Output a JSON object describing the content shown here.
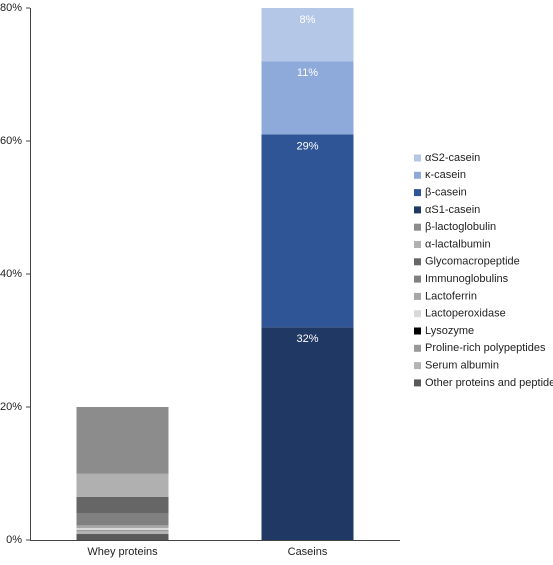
{
  "chart_data": {
    "type": "stacked_bar",
    "categories": [
      "Whey proteins",
      "Caseins"
    ],
    "ylim": [
      0,
      80
    ],
    "yticks": [
      {
        "value": 0,
        "label": "0%"
      },
      {
        "value": 20,
        "label": "20%"
      },
      {
        "value": 40,
        "label": "40%"
      },
      {
        "value": 60,
        "label": "60%"
      },
      {
        "value": 80,
        "label": "80%"
      }
    ],
    "series": [
      {
        "name": "αS2-casein",
        "color": "#b4c7e7",
        "values": [
          null,
          8
        ],
        "value_labels": [
          null,
          "8%"
        ]
      },
      {
        "name": "κ-casein",
        "color": "#8eaadb",
        "values": [
          null,
          11
        ],
        "value_labels": [
          null,
          "11%"
        ]
      },
      {
        "name": "β-casein",
        "color": "#2f5597",
        "values": [
          null,
          29
        ],
        "value_labels": [
          null,
          "29%"
        ]
      },
      {
        "name": "αS1-casein",
        "color": "#203864",
        "values": [
          null,
          32
        ],
        "value_labels": [
          null,
          "32%"
        ]
      },
      {
        "name": "β-lactoglobulin",
        "color": "#8c8c8c",
        "values": [
          10,
          null
        ]
      },
      {
        "name": "α-lactalbumin",
        "color": "#b0b0b0",
        "values": [
          3.5,
          null
        ]
      },
      {
        "name": "Glycomacropeptide",
        "color": "#666666",
        "values": [
          2.5,
          null
        ]
      },
      {
        "name": "Immunoglobulins",
        "color": "#808080",
        "values": [
          1.8,
          null
        ]
      },
      {
        "name": "Lactoferrin",
        "color": "#a6a6a6",
        "values": [
          0.4,
          null
        ]
      },
      {
        "name": "Lactoperoxidase",
        "color": "#d9d9d9",
        "values": [
          0.3,
          null
        ]
      },
      {
        "name": "Lysozyme",
        "color": "#000000",
        "values": [
          0,
          null
        ]
      },
      {
        "name": "Proline-rich polypeptides",
        "color": "#999999",
        "values": [
          0.2,
          null
        ]
      },
      {
        "name": "Serum albumin",
        "color": "#b3b3b3",
        "values": [
          0.4,
          null
        ]
      },
      {
        "name": "Other proteins and peptides",
        "color": "#595959",
        "values": [
          0.9,
          null
        ]
      }
    ]
  }
}
